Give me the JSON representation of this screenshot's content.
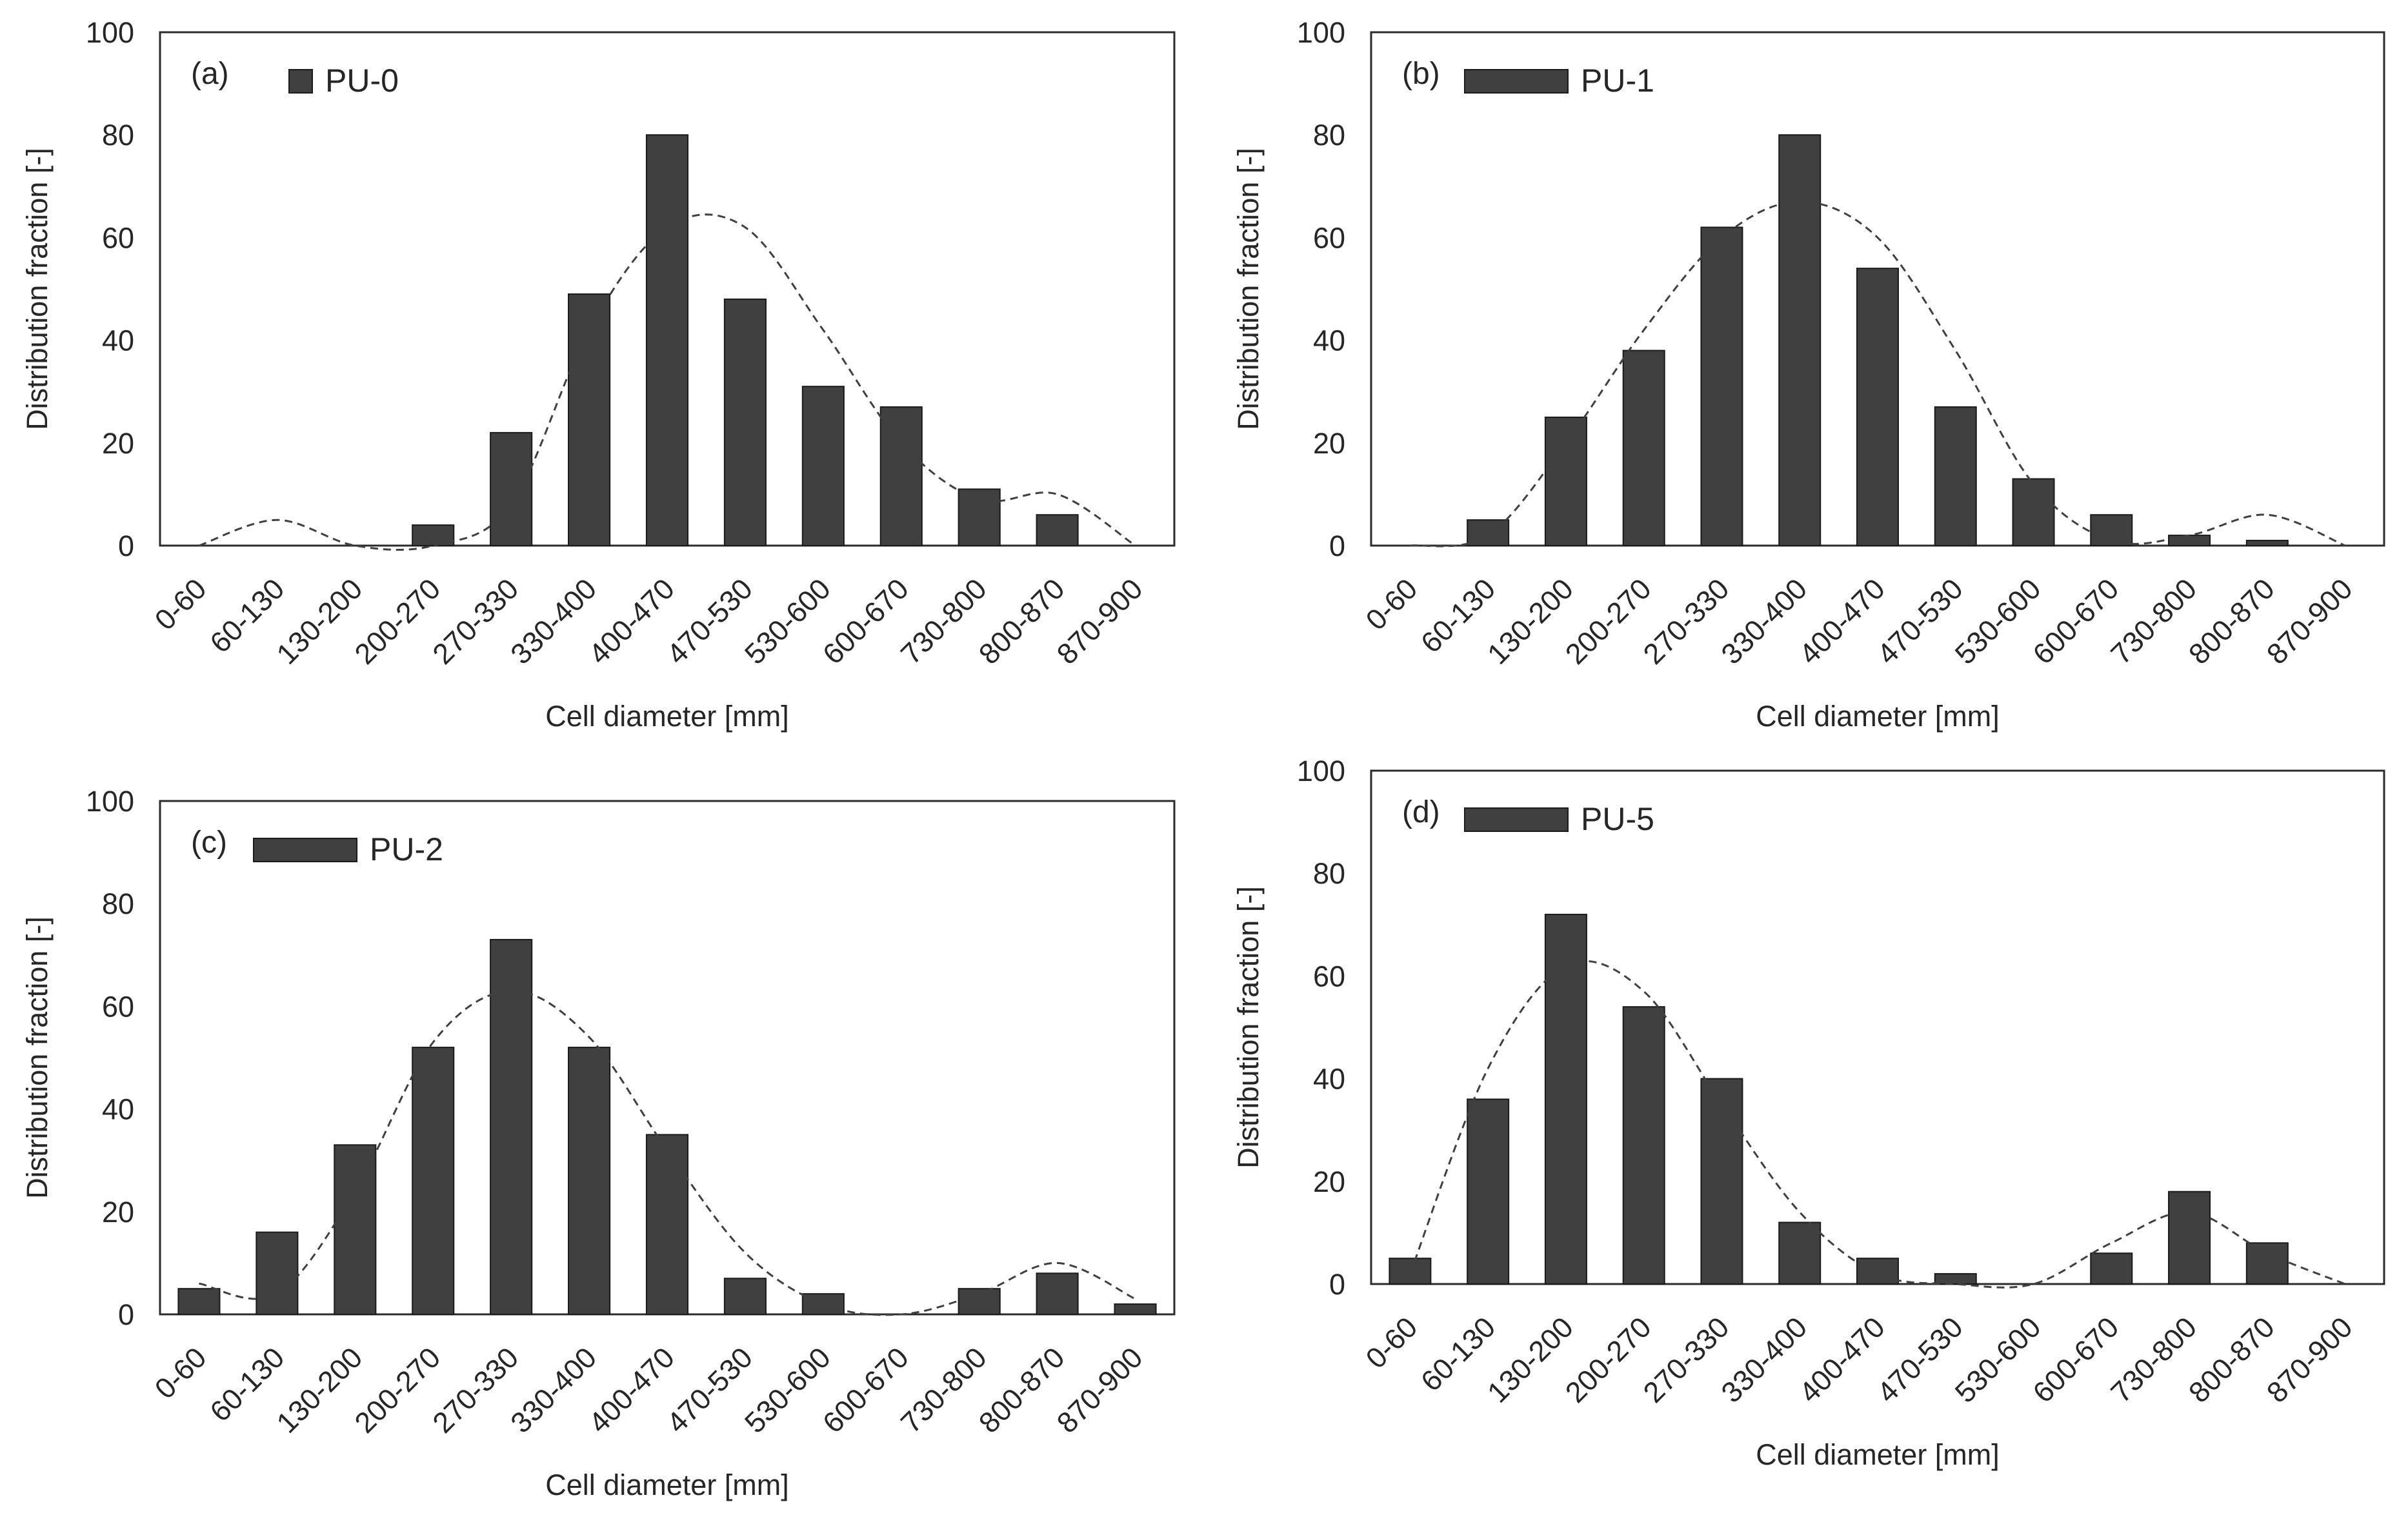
{
  "chart_data": [
    {
      "type": "bar",
      "panel_label": "(a)",
      "categories": [
        "0-60",
        "60-130",
        "130-200",
        "200-270",
        "270-330",
        "330-400",
        "400-470",
        "470-530",
        "530-600",
        "600-670",
        "730-800",
        "800-870",
        "870-900"
      ],
      "series": [
        {
          "name": "PU-0",
          "values": [
            0,
            0,
            0,
            4,
            22,
            49,
            80,
            48,
            31,
            27,
            11,
            6,
            0
          ]
        }
      ],
      "fit_curve": [
        0,
        5,
        0,
        0,
        8,
        42,
        62,
        62,
        42,
        20,
        9,
        10,
        0
      ],
      "xlabel": "Cell diameter [mm]",
      "ylabel": "Distribution fraction [-]",
      "ylim": [
        0,
        100
      ],
      "yticks": [
        "0",
        "20",
        "40",
        "60",
        "80",
        "100"
      ],
      "legend": "top-left",
      "grid": false,
      "colors": {
        "bar": "#404040",
        "curve": "#404040"
      }
    },
    {
      "type": "bar",
      "panel_label": "(b)",
      "categories": [
        "0-60",
        "60-130",
        "130-200",
        "200-270",
        "270-330",
        "330-400",
        "400-470",
        "470-530",
        "530-600",
        "600-670",
        "730-800",
        "800-870",
        "870-900"
      ],
      "series": [
        {
          "name": "PU-1",
          "values": [
            0,
            5,
            25,
            38,
            62,
            80,
            54,
            27,
            13,
            6,
            2,
            1,
            0
          ]
        }
      ],
      "fit_curve": [
        0,
        2,
        20,
        42,
        60,
        67,
        60,
        38,
        12,
        1,
        2,
        6,
        0
      ],
      "xlabel": "Cell diameter [mm]",
      "ylabel": "Distribution fraction [-]",
      "ylim": [
        0,
        100
      ],
      "yticks": [
        "0",
        "20",
        "40",
        "60",
        "80",
        "100"
      ],
      "legend": "top-left",
      "grid": false,
      "colors": {
        "bar": "#404040",
        "curve": "#404040"
      }
    },
    {
      "type": "bar",
      "panel_label": "(c)",
      "categories": [
        "0-60",
        "60-130",
        "130-200",
        "200-270",
        "270-330",
        "330-400",
        "400-470",
        "470-530",
        "530-600",
        "600-670",
        "730-800",
        "800-870",
        "870-900"
      ],
      "series": [
        {
          "name": "PU-2",
          "values": [
            5,
            16,
            33,
            52,
            73,
            52,
            35,
            7,
            4,
            0,
            5,
            8,
            2
          ]
        }
      ],
      "fit_curve": [
        6,
        4,
        24,
        53,
        63,
        54,
        32,
        12,
        2,
        0,
        4,
        10,
        3
      ],
      "xlabel": "Cell diameter [mm]",
      "ylabel": "Distribution fraction [-]",
      "ylim": [
        0,
        100
      ],
      "yticks": [
        "0",
        "20",
        "40",
        "60",
        "80",
        "100"
      ],
      "legend": "top-left",
      "grid": false,
      "colors": {
        "bar": "#404040",
        "curve": "#404040"
      }
    },
    {
      "type": "bar",
      "panel_label": "(d)",
      "categories": [
        "0-60",
        "60-130",
        "130-200",
        "200-270",
        "270-330",
        "330-400",
        "400-470",
        "470-530",
        "530-600",
        "600-670",
        "730-800",
        "800-870",
        "870-900"
      ],
      "series": [
        {
          "name": "PU-5",
          "values": [
            5,
            36,
            72,
            54,
            40,
            12,
            5,
            2,
            0,
            6,
            18,
            8,
            0
          ]
        }
      ],
      "fit_curve": [
        2,
        42,
        62,
        57,
        35,
        14,
        2,
        0,
        0,
        8,
        14,
        6,
        0
      ],
      "xlabel": "Cell diameter [mm]",
      "ylabel": "Distribution fraction [-]",
      "ylim": [
        0,
        100
      ],
      "yticks": [
        "0",
        "20",
        "40",
        "60",
        "80",
        "100"
      ],
      "legend": "top-left",
      "grid": false,
      "colors": {
        "bar": "#404040",
        "curve": "#404040"
      }
    }
  ]
}
